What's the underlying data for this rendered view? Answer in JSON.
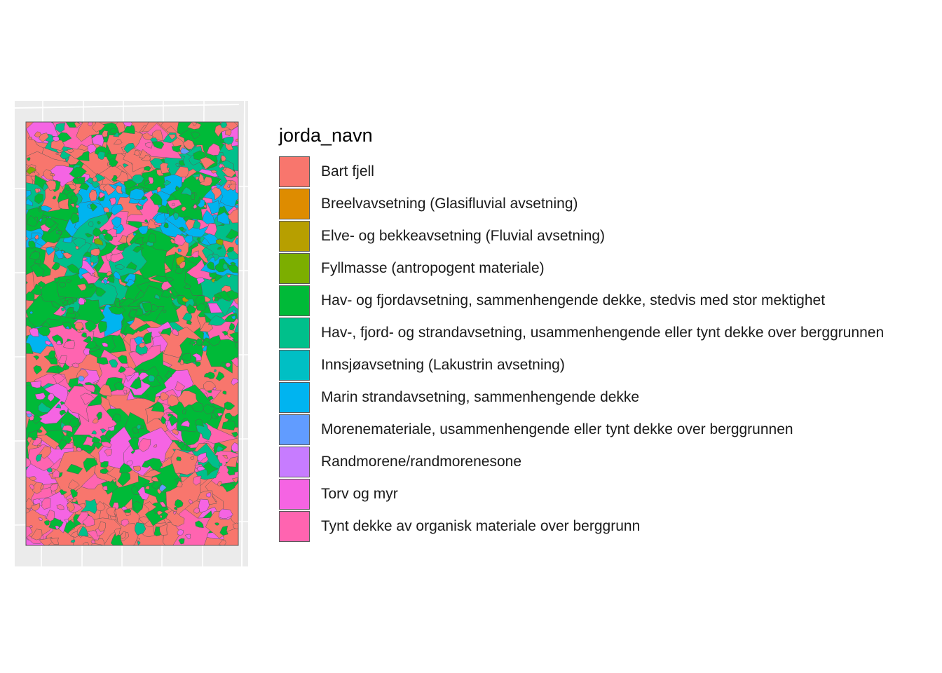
{
  "legend": {
    "title": "jorda_navn",
    "items": [
      {
        "label": "Bart fjell",
        "color": "#F8766D"
      },
      {
        "label": "Breelvavsetning (Glasifluvial avsetning)",
        "color": "#DE8C00"
      },
      {
        "label": "Elve- og bekkeavsetning (Fluvial avsetning)",
        "color": "#B79F00"
      },
      {
        "label": "Fyllmasse (antropogent materiale)",
        "color": "#7CAE00"
      },
      {
        "label": "Hav- og fjordavsetning, sammenhengende dekke, stedvis med stor mektighet",
        "color": "#00BA38"
      },
      {
        "label": "Hav-, fjord- og strandavsetning, usammenhengende eller tynt dekke over berggrunnen",
        "color": "#00C08B"
      },
      {
        "label": "Innsjøavsetning (Lakustrin avsetning)",
        "color": "#00BFC4"
      },
      {
        "label": "Marin strandavsetning, sammenhengende dekke",
        "color": "#00B4F0"
      },
      {
        "label": "Morenemateriale, usammenhengende eller tynt dekke over berggrunnen",
        "color": "#619CFF"
      },
      {
        "label": "Randmorene/randmorenesone",
        "color": "#C77CFF"
      },
      {
        "label": "Torv og myr",
        "color": "#F564E3"
      },
      {
        "label": "Tynt dekke av organisk materiale over berggrunn",
        "color": "#FF64B0"
      }
    ]
  },
  "map": {
    "panel_background": "#EBEBEB",
    "gridline_color": "#FFFFFF",
    "polygon_outline_color": "#595959",
    "dominant_classes": [
      "Bart fjell",
      "Hav- og fjordavsetning, sammenhengende dekke, stedvis med stor mektighet",
      "Tynt dekke av organisk materiale over berggrunn",
      "Marin strandavsetning, sammenhengende dekke"
    ]
  }
}
